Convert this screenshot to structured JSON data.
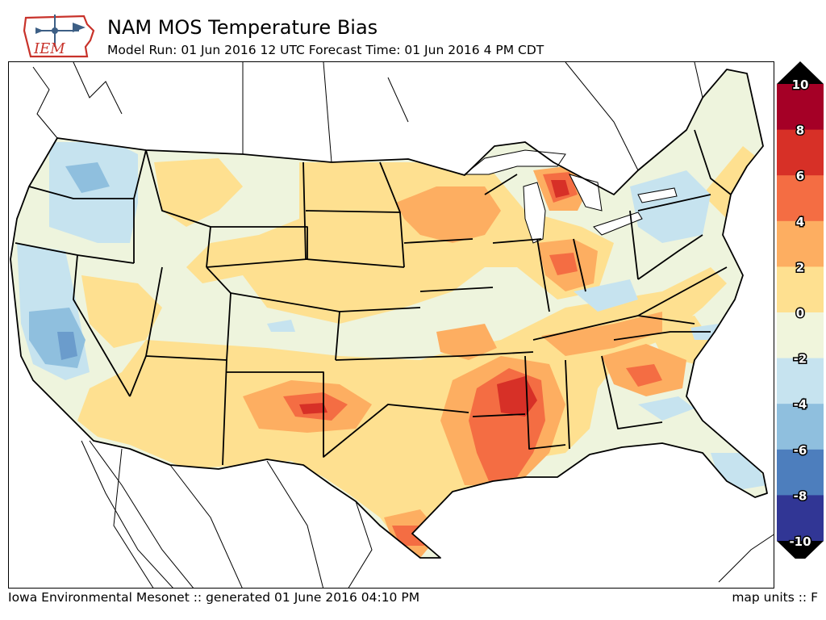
{
  "header": {
    "logo_text": "IEM",
    "title": "NAM MOS Temperature Bias",
    "subtitle": "Model Run: 01 Jun 2016 12 UTC Forecast Time: 01 Jun 2016 4 PM CDT"
  },
  "footer": {
    "credit": "Iowa Environmental Mesonet :: generated 01 June 2016 04:10 PM",
    "units": "map units :: F"
  },
  "colorbar": {
    "labels": [
      "10",
      "8",
      "6",
      "4",
      "2",
      "0",
      "-2",
      "-4",
      "-6",
      "-8",
      "-10"
    ],
    "bin_colors": [
      "#a50026",
      "#d73027",
      "#f46d43",
      "#fdae61",
      "#fee090",
      "#f0f5dc",
      "#c6e3ef",
      "#8fbfde",
      "#4d7ebd",
      "#313695"
    ],
    "over_color": "#000000",
    "under_color": "#000000"
  },
  "map": {
    "palette": {
      "neutral": "#eef4dd",
      "warm_2": "#fee090",
      "warm_4": "#fdae61",
      "warm_6": "#f46d43",
      "warm_8": "#d73027",
      "cool_2": "#c6e3ef",
      "cool_4": "#8fbfde",
      "cool_6": "#6b9ccc"
    }
  }
}
